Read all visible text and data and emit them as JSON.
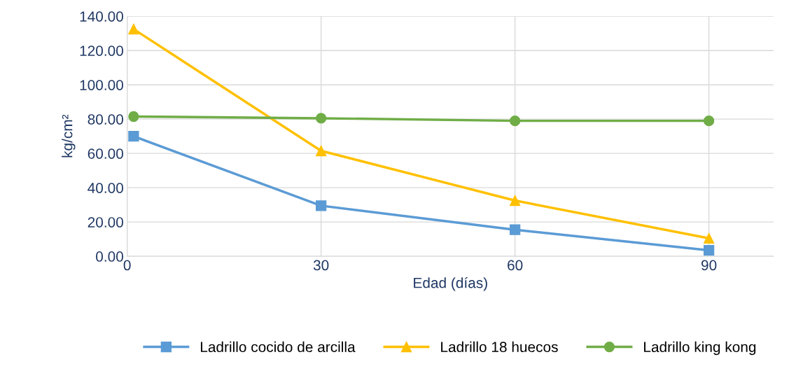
{
  "chart_data": {
    "type": "line",
    "xlabel": "Edad (días)",
    "ylabel": "kg/cm²",
    "xlim": [
      0,
      100
    ],
    "xticks": [
      0,
      30,
      60,
      90
    ],
    "ylim": [
      0,
      140
    ],
    "yticks": [
      {
        "value": 0,
        "label": "0.00"
      },
      {
        "value": 20,
        "label": "20.00"
      },
      {
        "value": 40,
        "label": "40.00"
      },
      {
        "value": 60,
        "label": "60.00"
      },
      {
        "value": 80,
        "label": "80.00"
      },
      {
        "value": 100,
        "label": "100.00"
      },
      {
        "value": 120,
        "label": "120.00"
      },
      {
        "value": 140,
        "label": "140.00"
      }
    ],
    "grid": true,
    "legend": "bottom",
    "series": [
      {
        "name": "Ladrillo cocido de arcilla",
        "color": "#5b9bd5",
        "marker": "square",
        "x": [
          1,
          30,
          60,
          90
        ],
        "values": [
          70,
          29.5,
          15.5,
          3.5
        ]
      },
      {
        "name": "Ladrillo 18 huecos",
        "color": "#ffc000",
        "marker": "triangle",
        "x": [
          1,
          30,
          60,
          90
        ],
        "values": [
          132.5,
          61.5,
          32.5,
          10.5
        ]
      },
      {
        "name": "Ladrillo king kong",
        "color": "#70ad47",
        "marker": "circle",
        "x": [
          1,
          30,
          60,
          90
        ],
        "values": [
          81.5,
          80.5,
          79,
          79
        ]
      }
    ]
  }
}
